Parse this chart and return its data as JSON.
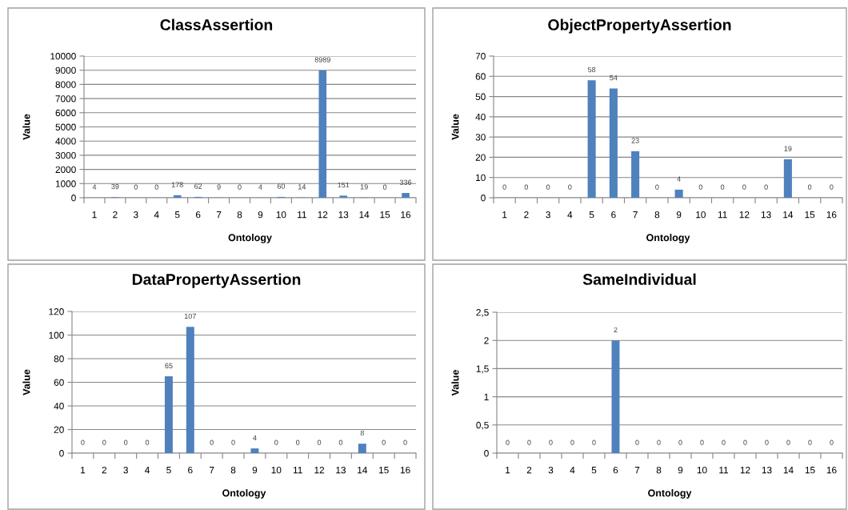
{
  "chart_data": [
    {
      "type": "bar",
      "title": "ClassAssertion",
      "xlabel": "Ontology",
      "ylabel": "Value",
      "categories": [
        "1",
        "2",
        "3",
        "4",
        "5",
        "6",
        "7",
        "8",
        "9",
        "10",
        "11",
        "12",
        "13",
        "14",
        "15",
        "16"
      ],
      "values": [
        4,
        39,
        0,
        0,
        178,
        62,
        9,
        0,
        4,
        60,
        14,
        8989,
        151,
        19,
        0,
        336
      ],
      "color": "#4f81bd",
      "ylim": [
        0,
        10000
      ],
      "yticks": [
        0,
        1000,
        2000,
        3000,
        4000,
        5000,
        6000,
        7000,
        8000,
        9000,
        10000
      ],
      "grid": "y",
      "data_labels": true
    },
    {
      "type": "bar",
      "title": "ObjectPropertyAssertion",
      "xlabel": "Ontology",
      "ylabel": "Value",
      "categories": [
        "1",
        "2",
        "3",
        "4",
        "5",
        "6",
        "7",
        "8",
        "9",
        "10",
        "11",
        "12",
        "13",
        "14",
        "15",
        "16"
      ],
      "values": [
        0,
        0,
        0,
        0,
        58,
        54,
        23,
        0,
        4,
        0,
        0,
        0,
        0,
        19,
        0,
        0
      ],
      "color": "#4f81bd",
      "ylim": [
        0,
        70
      ],
      "yticks": [
        0,
        10,
        20,
        30,
        40,
        50,
        60,
        70
      ],
      "grid": "y",
      "data_labels": true
    },
    {
      "type": "bar",
      "title": "DataPropertyAssertion",
      "xlabel": "Ontology",
      "ylabel": "Value",
      "categories": [
        "1",
        "2",
        "3",
        "4",
        "5",
        "6",
        "7",
        "8",
        "9",
        "10",
        "11",
        "12",
        "13",
        "14",
        "15",
        "16"
      ],
      "values": [
        0,
        0,
        0,
        0,
        65,
        107,
        0,
        0,
        4,
        0,
        0,
        0,
        0,
        8,
        0,
        0
      ],
      "color": "#4f81bd",
      "ylim": [
        0,
        120
      ],
      "yticks": [
        0,
        20,
        40,
        60,
        80,
        100,
        120
      ],
      "grid": "y",
      "data_labels": true
    },
    {
      "type": "bar",
      "title": "SameIndividual",
      "xlabel": "Ontology",
      "ylabel": "Value",
      "categories": [
        "1",
        "2",
        "3",
        "4",
        "5",
        "6",
        "7",
        "8",
        "9",
        "10",
        "11",
        "12",
        "13",
        "14",
        "15",
        "16"
      ],
      "values": [
        0,
        0,
        0,
        0,
        0,
        2,
        0,
        0,
        0,
        0,
        0,
        0,
        0,
        0,
        0,
        0
      ],
      "color": "#4f81bd",
      "ylim": [
        0,
        2.5
      ],
      "yticks": [
        0,
        {
          "value": 0.5,
          "label": "0,5"
        },
        1,
        {
          "value": 1.5,
          "label": "1,5"
        },
        2,
        {
          "value": 2.5,
          "label": "2,5"
        }
      ],
      "grid": "y",
      "data_labels": true
    }
  ]
}
